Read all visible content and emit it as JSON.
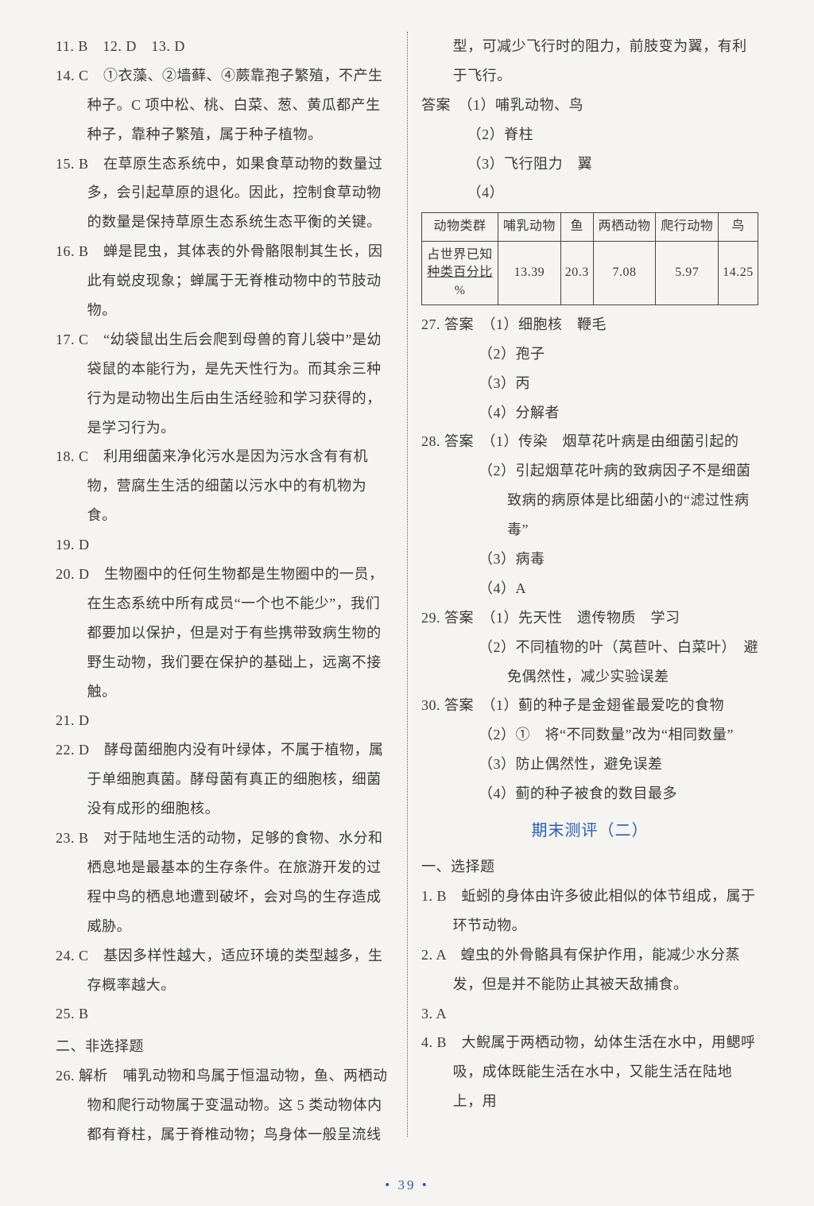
{
  "left": {
    "l11": "11. B　12. D　13. D",
    "l14": "14. C　①衣藻、②墙藓、④蕨靠孢子繁殖，不产生种子。C 项中松、桃、白菜、葱、黄瓜都产生种子，靠种子繁殖，属于种子植物。",
    "l15": "15. B　在草原生态系统中，如果食草动物的数量过多，会引起草原的退化。因此，控制食草动物的数量是保持草原生态系统生态平衡的关键。",
    "l16": "16. B　蝉是昆虫，其体表的外骨骼限制其生长，因此有蜕皮现象；蝉属于无脊椎动物中的节肢动物。",
    "l17": "17. C　“幼袋鼠出生后会爬到母兽的育儿袋中”是幼袋鼠的本能行为，是先天性行为。而其余三种行为是动物出生后由生活经验和学习获得的，是学习行为。",
    "l18": "18. C　利用细菌来净化污水是因为污水含有有机物，营腐生生活的细菌以污水中的有机物为食。",
    "l19": "19. D",
    "l20": "20. D　生物圈中的任何生物都是生物圈中的一员，在生态系统中所有成员“一个也不能少”，我们都要加以保护，但是对于有些携带致病生物的野生动物，我们要在保护的基础上，远离不接触。",
    "l21": "21. D",
    "l22": "22. D　酵母菌细胞内没有叶绿体，不属于植物，属于单细胞真菌。酵母菌有真正的细胞核，细菌没有成形的细胞核。",
    "l23": "23. B　对于陆地生活的动物，足够的食物、水分和栖息地是最基本的生存条件。在旅游开发的过程中鸟的栖息地遭到破坏，会对鸟的生存造成威胁。",
    "l24": "24. C　基因多样性越大，适应环境的类型越多，生存概率越大。",
    "l25": "25. B",
    "sec2": "二、非选择题",
    "l26": "26. 解析　哺乳动物和鸟属于恒温动物，鱼、两栖动物和爬行动物属于变温动物。这 5 类动物体内都有脊柱，属于脊椎动物；鸟身体一般呈流线"
  },
  "right": {
    "cont": "型，可减少飞行时的阻力，前肢变为翼，有利于飞行。",
    "ans_label": "答案",
    "a1": "（1）哺乳动物、鸟",
    "a2": "（2）脊柱",
    "a3": "（3）飞行阻力　翼",
    "a4": "（4）",
    "table": {
      "headers": [
        "动物类群",
        "哺乳动物",
        "鱼",
        "两栖动物",
        "爬行动物",
        "鸟"
      ],
      "row_label_l1": "占世界已知",
      "row_label_l2": "种类百分比",
      "row_label_l3": "%",
      "values": [
        "13.39",
        "20.3",
        "7.08",
        "5.97",
        "14.25"
      ]
    },
    "q27_head": "27. 答案",
    "q27_1": "（1）细胞核　鞭毛",
    "q27_2": "（2）孢子",
    "q27_3": "（3）丙",
    "q27_4": "（4）分解者",
    "q28_head": "28. 答案",
    "q28_1": "（1）传染　烟草花叶病是由细菌引起的",
    "q28_2": "（2）引起烟草花叶病的致病因子不是细菌　致病的病原体是比细菌小的“滤过性病毒”",
    "q28_3": "（3）病毒",
    "q28_4": "（4）A",
    "q29_head": "29. 答案",
    "q29_1": "（1）先天性　遗传物质　学习",
    "q29_2": "（2）不同植物的叶（莴苣叶、白菜叶）　避免偶然性，减少实验误差",
    "q30_head": "30. 答案",
    "q30_1": "（1）蓟的种子是金翅雀最爱吃的食物",
    "q30_2": "（2）①　将“不同数量”改为“相同数量”",
    "q30_3": "（3）防止偶然性，避免误差",
    "q30_4": "（4）蓟的种子被食的数目最多",
    "exam2": "期末测评（二）",
    "sec1": "一、选择题",
    "e1": "1. B　蚯蚓的身体由许多彼此相似的体节组成，属于环节动物。",
    "e2": "2. A　蝗虫的外骨骼具有保护作用，能减少水分蒸发，但是并不能防止其被天敌捕食。",
    "e3": "3. A",
    "e4": "4. B　大鲵属于两栖动物，幼体生活在水中，用鳃呼吸，成体既能生活在水中，又能生活在陆地上，用"
  },
  "page_number": "39",
  "colors": {
    "text": "#3a3a3a",
    "accent": "#2a5db0",
    "background": "#f5f4f0",
    "border": "#444444"
  }
}
